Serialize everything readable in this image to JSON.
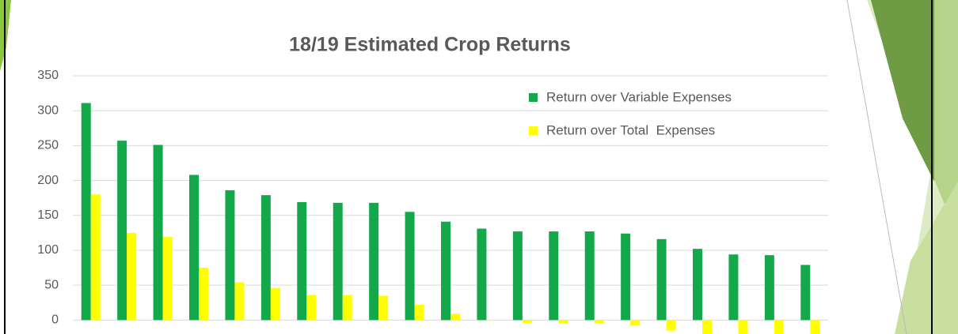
{
  "chart_data": {
    "type": "bar",
    "title": "18/19 Estimated Crop Returns",
    "categories": [
      null,
      null,
      null,
      null,
      null,
      null,
      null,
      null,
      null,
      null,
      null,
      null,
      null,
      null,
      null,
      null,
      null,
      null,
      null,
      null,
      null
    ],
    "series": [
      {
        "name": "Return over Variable Expenses",
        "color": "#13a84a",
        "values": [
          311,
          257,
          251,
          208,
          186,
          179,
          169,
          168,
          168,
          155,
          141,
          131,
          127,
          127,
          127,
          124,
          116,
          102,
          94,
          93,
          79
        ]
      },
      {
        "name": "Return over Total  Expenses",
        "color": "#ffff00",
        "values": [
          180,
          125,
          119,
          75,
          54,
          46,
          36,
          36,
          35,
          22,
          9,
          -1,
          -4,
          -5,
          -5,
          -8,
          -15,
          -20,
          -20,
          -20,
          -20
        ]
      }
    ],
    "ylim": [
      -20,
      350
    ],
    "yticks": [
      0,
      50,
      100,
      150,
      200,
      250,
      300,
      350
    ],
    "grid": true,
    "legend": "upper right"
  }
}
